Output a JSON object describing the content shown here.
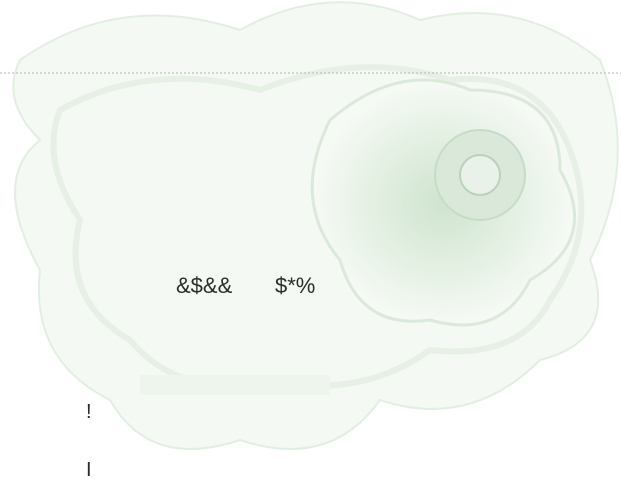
{
  "document": {
    "line": [
      "&$&&",
      "$*%"
    ],
    "marks": [
      "!",
      "I"
    ]
  }
}
